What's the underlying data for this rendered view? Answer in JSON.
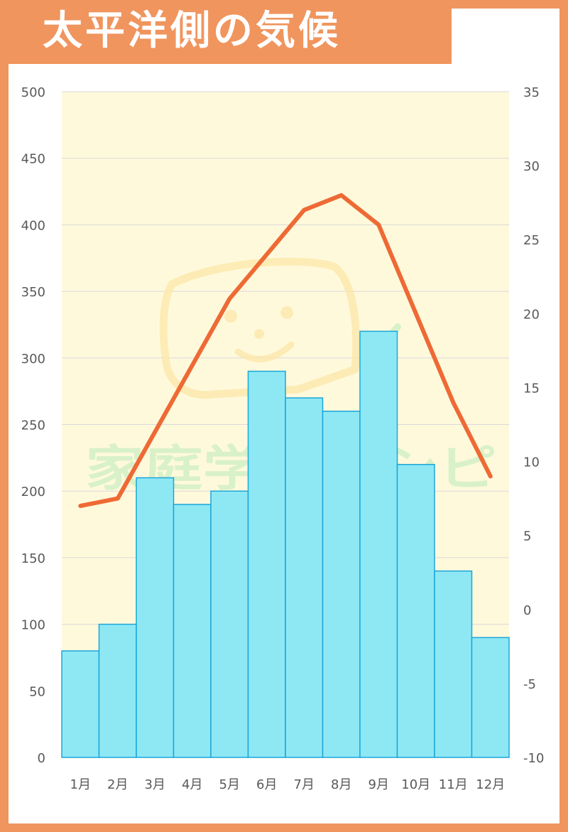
{
  "title": "太平洋側の気候",
  "watermark_text": "家庭学習レシピ",
  "colors": {
    "frame": "#F0955E",
    "plot_bg": "#FFF9DC",
    "bar_fill": "#8EE8F4",
    "bar_stroke": "#1BA6D9",
    "line": "#EE6A35",
    "grid": "#D9D9D9",
    "tick_text": "#595959",
    "watermark_green": "#CDEFC3",
    "watermark_yellow": "#FCE7A8"
  },
  "chart_data": {
    "type": "bar",
    "categories": [
      "1月",
      "2月",
      "3月",
      "4月",
      "5月",
      "6月",
      "7月",
      "8月",
      "9月",
      "10月",
      "11月",
      "12月"
    ],
    "series": [
      {
        "kind": "bar",
        "axis": "left",
        "values": [
          80,
          100,
          210,
          190,
          200,
          290,
          270,
          260,
          320,
          220,
          140,
          90
        ]
      },
      {
        "kind": "line",
        "axis": "right",
        "values": [
          7,
          7.5,
          12,
          16.5,
          21,
          24,
          27,
          28,
          26,
          20,
          14,
          9
        ]
      }
    ],
    "y_left": {
      "min": 0,
      "max": 500,
      "ticks": [
        0,
        50,
        100,
        150,
        200,
        250,
        300,
        350,
        400,
        450,
        500
      ]
    },
    "y_right": {
      "min": -10,
      "max": 35,
      "ticks": [
        -10,
        -5,
        0,
        5,
        10,
        15,
        20,
        25,
        30,
        35
      ]
    },
    "grid": true,
    "legend": "none"
  }
}
